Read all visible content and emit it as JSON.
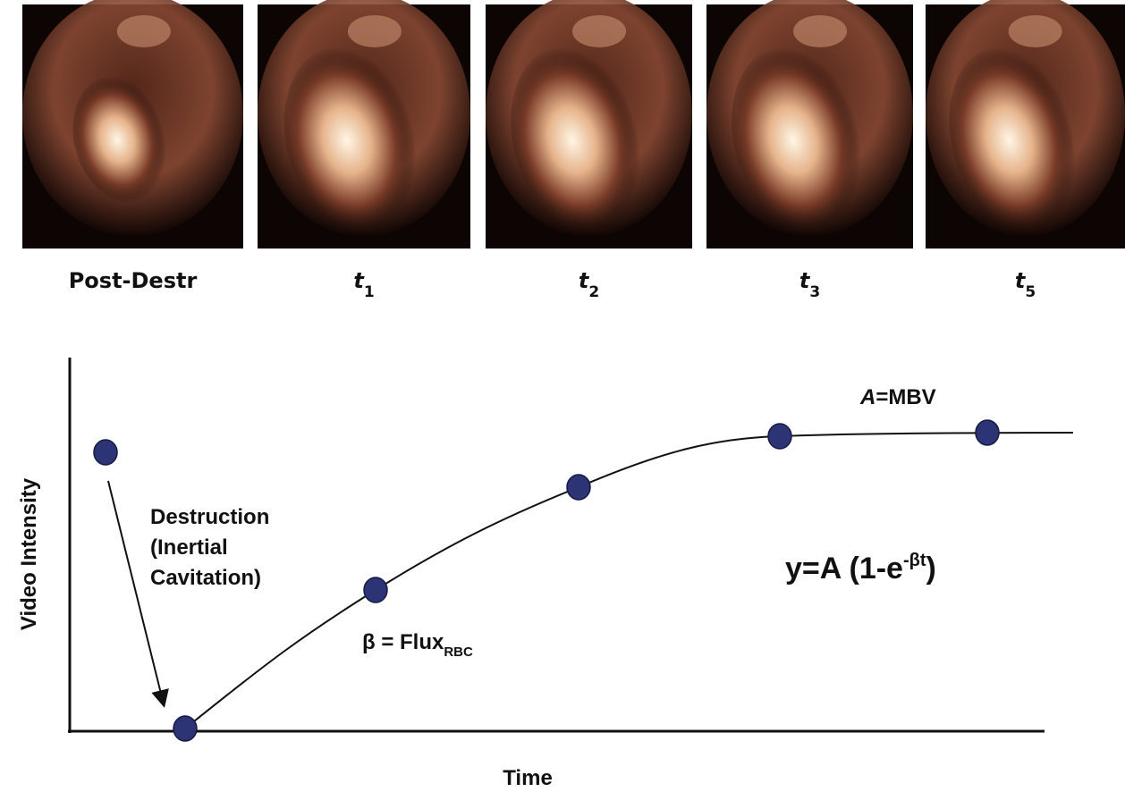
{
  "panels": [
    {
      "label": "Post-Destr"
    },
    {
      "label": "t",
      "sub": "1"
    },
    {
      "label": "t",
      "sub": "2"
    },
    {
      "label": "t",
      "sub": "3"
    },
    {
      "label": "t",
      "sub": "5"
    }
  ],
  "plot": {
    "y_label": "Video Intensity",
    "x_label": "Time",
    "destruction": [
      "Destruction",
      "(Inertial",
      "Cavitation)"
    ],
    "flux": {
      "text": "β = Flux",
      "sub": "RBC"
    },
    "mbv": {
      "italic": "A",
      "text": "=MBV"
    },
    "formula": {
      "text": "y=A (1-e",
      "sup": "-βt",
      "end": ")"
    }
  }
}
